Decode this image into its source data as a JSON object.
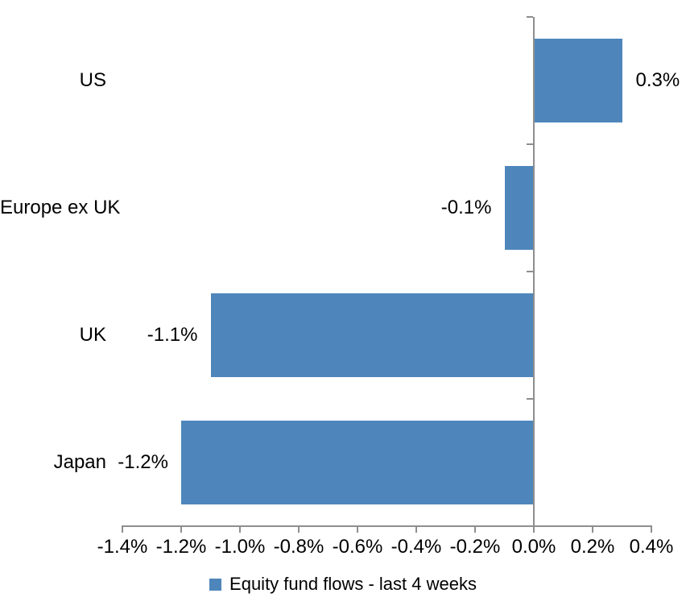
{
  "chart_data": {
    "type": "bar",
    "orientation": "horizontal",
    "title": "",
    "categories": [
      "US",
      "Europe ex UK",
      "UK",
      "Japan"
    ],
    "series": [
      {
        "name": "Equity fund flows - last 4 weeks",
        "values": [
          0.3,
          -0.1,
          -1.1,
          -1.2
        ],
        "data_labels": [
          "0.3%",
          "-0.1%",
          "-1.1%",
          "-1.2%"
        ],
        "color": "#4E86BC"
      }
    ],
    "xlabel": "",
    "ylabel": "",
    "xlim": [
      -1.4,
      0.4
    ],
    "x_tick_values": [
      -1.4,
      -1.2,
      -1.0,
      -0.8,
      -0.6,
      -0.4,
      -0.2,
      0.0,
      0.2,
      0.4
    ],
    "x_tick_labels": [
      "-1.4%",
      "-1.2%",
      "-1.0%",
      "-0.8%",
      "-0.6%",
      "-0.4%",
      "-0.2%",
      "0.0%",
      "0.2%",
      "0.4%"
    ],
    "grid": false,
    "legend_position": "bottom",
    "colors": {
      "bar": "#4E86BC",
      "axis": "#8E8E8E",
      "text": "#000000",
      "background": "#FFFFFF"
    }
  }
}
